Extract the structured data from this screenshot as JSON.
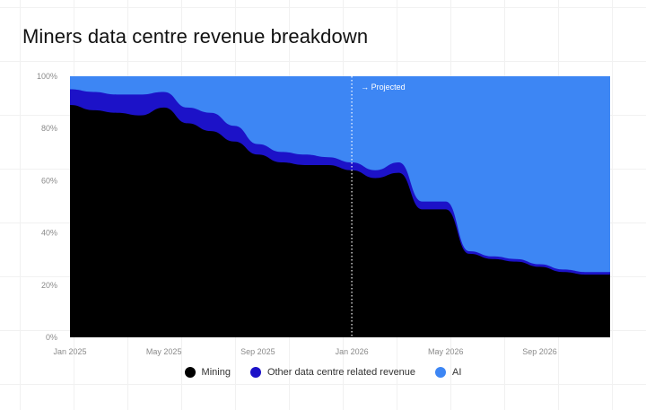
{
  "title": "Miners data centre revenue breakdown",
  "chart_data": {
    "type": "area",
    "stacked": true,
    "title": "Miners data centre revenue breakdown",
    "x_unit": "month",
    "x": [
      "2025-01",
      "2025-02",
      "2025-03",
      "2025-04",
      "2025-05",
      "2025-06",
      "2025-07",
      "2025-08",
      "2025-09",
      "2025-10",
      "2025-11",
      "2025-12",
      "2026-01",
      "2026-02",
      "2026-03",
      "2026-04",
      "2026-05",
      "2026-06",
      "2026-07",
      "2026-08",
      "2026-09",
      "2026-10",
      "2026-11",
      "2026-12"
    ],
    "series": [
      {
        "name": "Mining",
        "color": "#000000",
        "values": [
          89,
          87,
          86,
          85,
          88,
          82,
          79,
          75,
          70,
          67,
          66,
          66,
          64,
          61,
          63,
          49,
          49,
          32,
          30,
          29,
          27,
          25,
          24,
          24
        ]
      },
      {
        "name": "Other data centre related revenue",
        "color": "#1c12c8",
        "values": [
          6,
          7,
          7,
          8,
          6,
          6,
          7,
          6,
          4,
          4,
          4,
          3,
          3,
          3,
          4,
          3,
          3,
          1,
          1,
          1,
          1,
          1,
          1,
          1
        ]
      },
      {
        "name": "AI",
        "color": "#3d86f4",
        "values": [
          5,
          6,
          7,
          7,
          6,
          12,
          14,
          19,
          26,
          29,
          30,
          31,
          33,
          36,
          33,
          48,
          48,
          67,
          69,
          70,
          72,
          74,
          75,
          75
        ]
      }
    ],
    "ylim": [
      0,
      100
    ],
    "yticks": [
      "0%",
      "20%",
      "40%",
      "60%",
      "80%",
      "100%"
    ],
    "yticks_values": [
      0,
      20,
      40,
      60,
      80,
      100
    ],
    "xticks": [
      {
        "x": "2025-01",
        "label": "Jan 2025"
      },
      {
        "x": "2025-05",
        "label": "May 2025"
      },
      {
        "x": "2025-09",
        "label": "Sep 2025"
      },
      {
        "x": "2026-01",
        "label": "Jan 2026"
      },
      {
        "x": "2026-05",
        "label": "May 2026"
      },
      {
        "x": "2026-09",
        "label": "Sep 2026"
      }
    ],
    "annotation": {
      "x": "2026-01",
      "label": "→ Projected",
      "style": "dotted-line"
    },
    "legend": "bottom-center"
  }
}
